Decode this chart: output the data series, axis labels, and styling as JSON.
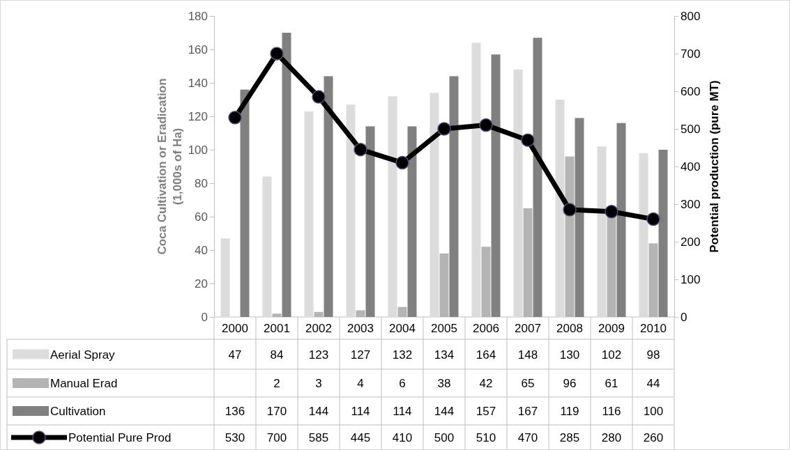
{
  "chart_data": {
    "type": "bar",
    "ylabel": "Coca Cultivation or  Eradication\n(1,000s of Ha)",
    "y2label": "Potential production (pure MT)",
    "categories": [
      "2000",
      "2001",
      "2002",
      "2003",
      "2004",
      "2005",
      "2006",
      "2007",
      "2008",
      "2009",
      "2010"
    ],
    "ylim": [
      0,
      180
    ],
    "yticks": [
      0,
      20,
      40,
      60,
      80,
      100,
      120,
      140,
      160,
      180
    ],
    "y2lim": [
      0,
      800
    ],
    "y2ticks": [
      0,
      100,
      200,
      300,
      400,
      500,
      600,
      700,
      800
    ],
    "series": [
      {
        "name": "Aerial Spray",
        "color": "#dcdcdc",
        "values": [
          47,
          84,
          123,
          127,
          132,
          134,
          164,
          148,
          130,
          102,
          98
        ]
      },
      {
        "name": "Manual Erad",
        "color": "#b4b4b4",
        "values": [
          null,
          2,
          3,
          4,
          6,
          38,
          42,
          65,
          96,
          61,
          44
        ]
      },
      {
        "name": "Cultivation",
        "color": "#808080",
        "values": [
          136,
          170,
          144,
          114,
          114,
          144,
          157,
          167,
          119,
          116,
          100
        ]
      },
      {
        "name": "Potential Pure Prod",
        "type": "line",
        "axis": "y2",
        "color": "#000000",
        "marker": "circle",
        "line_style": "solid",
        "values": [
          530,
          700,
          585,
          445,
          410,
          500,
          510,
          470,
          285,
          280,
          260
        ]
      }
    ],
    "data_labels": true,
    "legend": "bottom"
  }
}
